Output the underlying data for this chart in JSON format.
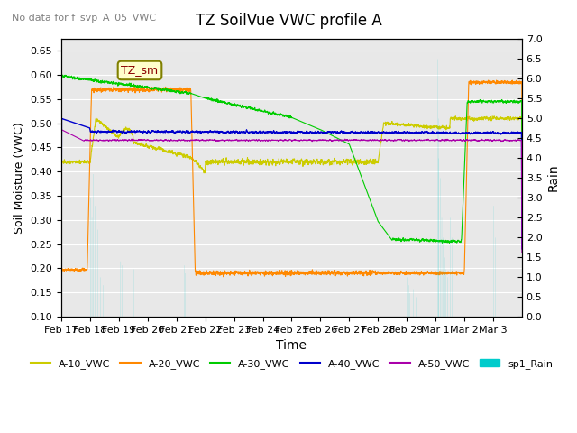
{
  "title": "TZ SoilVue VWC profile A",
  "subtitle": "No data for f_svp_A_05_VWC",
  "xlabel": "Time",
  "ylabel_left": "Soil Moisture (VWC)",
  "ylabel_right": "Rain",
  "ylim_left": [
    0.1,
    0.675
  ],
  "ylim_right": [
    0.0,
    7.0
  ],
  "yticks_left": [
    0.1,
    0.15,
    0.2,
    0.25,
    0.3,
    0.35,
    0.4,
    0.45,
    0.5,
    0.55,
    0.6,
    0.65
  ],
  "yticks_right": [
    0.0,
    0.5,
    1.0,
    1.5,
    2.0,
    2.5,
    3.0,
    3.5,
    4.0,
    4.5,
    5.0,
    5.5,
    6.0,
    6.5,
    7.0
  ],
  "colors": {
    "A10": "#cccc00",
    "A20": "#ff8800",
    "A30": "#00cc00",
    "A40": "#0000cc",
    "A50": "#aa00aa",
    "Rain": "#00cccc",
    "background": "#e8e8e8",
    "grid": "#ffffff"
  },
  "legend_labels": [
    "A-10_VWC",
    "A-20_VWC",
    "A-30_VWC",
    "A-40_VWC",
    "A-50_VWC",
    "sp1_Rain"
  ],
  "legend_colors": [
    "#cccc00",
    "#ff8800",
    "#00cc00",
    "#0000cc",
    "#aa00aa",
    "#00cccc"
  ],
  "tz_sm_label": "TZ_sm",
  "n_days": 16,
  "xticklabels": [
    "Feb 17",
    "Feb 18",
    "Feb 19",
    "Feb 20",
    "Feb 21",
    "Feb 22",
    "Feb 23",
    "Feb 24",
    "Feb 25",
    "Feb 26",
    "Feb 27",
    "Feb 28",
    "Feb 29",
    "Mar 1",
    "Mar 2",
    "Mar 3"
  ]
}
